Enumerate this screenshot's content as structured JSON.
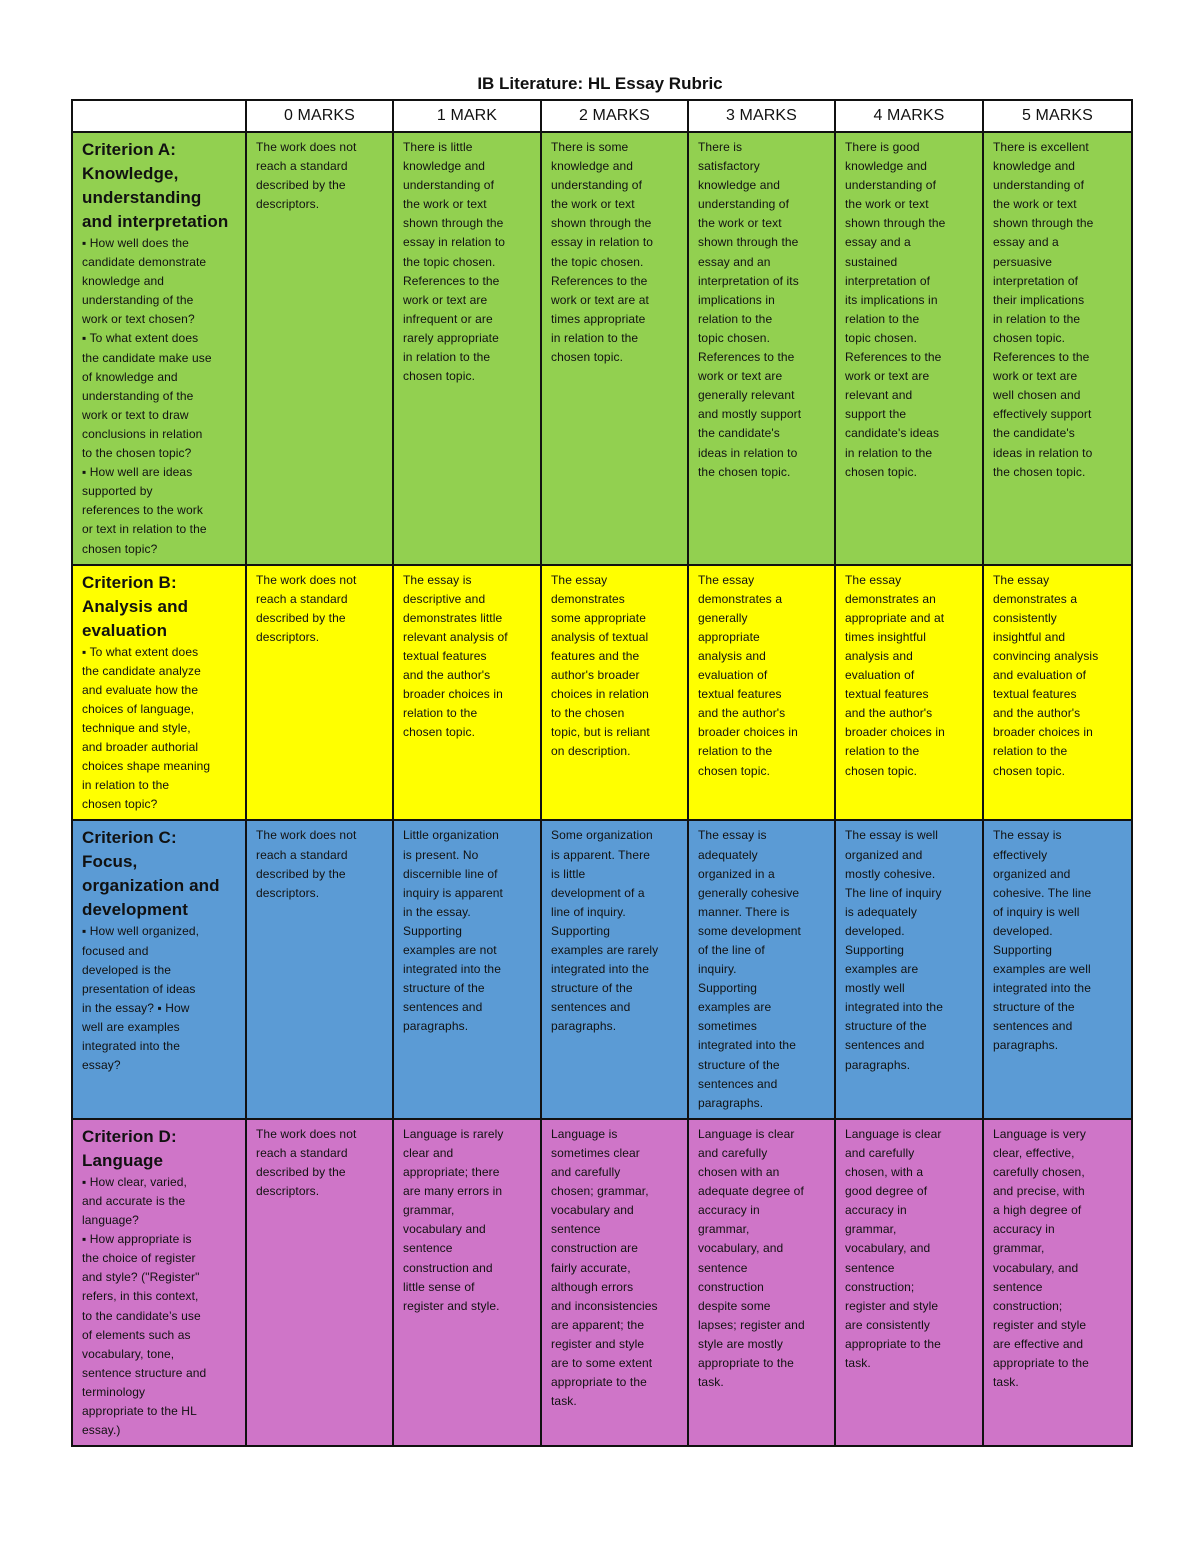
{
  "title": "IB Literature: HL Essay Rubric",
  "colors": {
    "criterion_a": "#92d050",
    "criterion_b": "#ffff00",
    "criterion_c": "#5b9bd5",
    "criterion_d": "#cf75c8"
  },
  "headers": [
    "",
    "0 MARKS",
    "1 MARK",
    "2 MARKS",
    "3 MARKS",
    "4 MARKS",
    "5 MARKS"
  ],
  "rows": [
    {
      "title": "Criterion A:\nKnowledge,\nunderstanding\nand interpretation",
      "description": "▪  How well does the\ncandidate demonstrate\nknowledge and\nunderstanding of the\nwork or text chosen?\n▪  To what extent does\nthe candidate make use\nof knowledge and\nunderstanding of the\nwork or text to draw\nconclusions in relation\nto the chosen topic?\n▪  How well are ideas\nsupported by\nreferences to the work\nor text in relation to the\nchosen topic?",
      "cells": [
        "The work does not\nreach a standard\ndescribed by the\ndescriptors.",
        "There is little\nknowledge and\nunderstanding of\nthe work or text\nshown through the\nessay in relation to\nthe topic chosen.\nReferences to the\nwork or text are\ninfrequent or are\nrarely appropriate\nin relation to the\nchosen topic.",
        "There is some\nknowledge and\nunderstanding of\nthe work or text\nshown through the\nessay in relation to\nthe topic chosen.\nReferences to the\nwork or text are at\ntimes appropriate\nin relation to the\nchosen topic.",
        "There is\nsatisfactory\nknowledge and\nunderstanding of\nthe work or text\nshown through the\nessay and an\ninterpretation of its\nimplications in\nrelation to the\ntopic chosen.\nReferences to the\nwork or text are\ngenerally relevant\nand mostly support\nthe candidate's\nideas in relation to\nthe chosen topic.",
        "There is good\nknowledge and\nunderstanding of\nthe work or text\nshown through the\nessay and a\nsustained\ninterpretation of\nits implications in\nrelation to the\ntopic chosen.\nReferences to the\nwork or text are\nrelevant and\nsupport the\ncandidate's ideas\nin relation to the\nchosen topic.",
        "There is excellent\nknowledge and\nunderstanding of\nthe work or text\nshown through the\nessay and a\npersuasive\ninterpretation of\ntheir implications\nin relation to the\nchosen topic.\nReferences to the\nwork or text are\nwell chosen and\neffectively support\nthe candidate's\nideas in relation to\nthe chosen topic."
      ]
    },
    {
      "title": "Criterion B:\nAnalysis and\nevaluation",
      "description": "▪ To what extent does\nthe candidate analyze\nand evaluate how the\nchoices of language,\ntechnique and style,\nand broader authorial\nchoices shape meaning\nin relation to the\nchosen topic?",
      "cells": [
        "The work does not\nreach a standard\ndescribed by the\ndescriptors.",
        "The essay is\ndescriptive and\ndemonstrates little\nrelevant analysis of\ntextual features\nand the author's\nbroader choices in\nrelation to the\nchosen topic.",
        "The essay\ndemonstrates\nsome appropriate\nanalysis of textual\nfeatures and the\nauthor's broader\nchoices in relation\nto the chosen\ntopic, but is reliant\non description.",
        "The essay\ndemonstrates a\ngenerally\nappropriate\nanalysis and\nevaluation of\ntextual features\nand the author's\nbroader choices in\nrelation to the\nchosen topic.",
        "The essay\ndemonstrates an\nappropriate and at\ntimes insightful\nanalysis and\nevaluation of\ntextual features\nand the author's\nbroader choices in\nrelation to the\nchosen topic.",
        "The essay\ndemonstrates a\nconsistently\ninsightful and\nconvincing analysis\nand evaluation of\ntextual features\nand the author's\nbroader choices in\nrelation to the\nchosen topic."
      ]
    },
    {
      "title": "Criterion C: Focus,\norganization and\ndevelopment",
      "description": "▪ How well organized,\nfocused and\ndeveloped is the\npresentation of ideas\nin the essay? ▪ How\nwell are examples\nintegrated into the\nessay?",
      "cells": [
        "The work does not\nreach a standard\ndescribed by the\ndescriptors.",
        "Little organization\nis present. No\ndiscernible line of\ninquiry is apparent\nin the essay.\nSupporting\nexamples are not\nintegrated into the\nstructure of the\nsentences and\nparagraphs.",
        "Some organization\nis apparent. There\nis little\ndevelopment of a\nline of inquiry.\nSupporting\nexamples are rarely\nintegrated into the\nstructure of the\nsentences and\nparagraphs.",
        "The essay is\nadequately\norganized in a\ngenerally cohesive\nmanner. There is\nsome development\nof the line of\ninquiry.\nSupporting\nexamples are\nsometimes\nintegrated into the\nstructure of the\nsentences and\nparagraphs.",
        "The essay is well\norganized and\nmostly cohesive.\nThe line of inquiry\nis adequately\ndeveloped.\nSupporting\nexamples are\nmostly well\nintegrated into the\nstructure of the\nsentences and\nparagraphs.",
        "The essay is\neffectively\norganized and\ncohesive. The line\nof inquiry is well\ndeveloped.\nSupporting\nexamples are well\nintegrated into the\nstructure of the\nsentences and\nparagraphs."
      ]
    },
    {
      "title": "Criterion D:\nLanguage",
      "description": "▪  How clear, varied,\nand accurate is the\nlanguage?\n▪  How appropriate is\nthe choice of register\nand style? (\"Register\"\nrefers, in this context,\nto the candidate’s use\nof elements such as\nvocabulary, tone,\nsentence structure and\nterminology\nappropriate to the HL\nessay.)",
      "cells": [
        "The work does not\nreach a standard\ndescribed by the\ndescriptors.",
        "Language is rarely\nclear and\nappropriate; there\nare many errors in\ngrammar,\nvocabulary and\nsentence\nconstruction and\nlittle sense of\nregister and style.",
        "Language is\nsometimes clear\nand carefully\nchosen; grammar,\nvocabulary and\nsentence\nconstruction are\nfairly accurate,\nalthough errors\nand inconsistencies\nare apparent; the\nregister and style\nare to some extent\nappropriate to the\ntask.",
        "Language is clear\nand carefully\nchosen with an\nadequate degree of\naccuracy in\ngrammar,\nvocabulary, and\nsentence\nconstruction\ndespite some\nlapses; register and\nstyle are mostly\nappropriate to the\ntask.",
        "Language is clear\nand carefully\nchosen, with a\ngood degree of\naccuracy in\ngrammar,\nvocabulary, and\nsentence\nconstruction;\nregister and style\nare consistently\nappropriate to the\ntask.",
        "Language is very\nclear, effective,\ncarefully chosen,\nand precise, with\na high degree of\naccuracy in\ngrammar,\nvocabulary, and\nsentence\nconstruction;\nregister and style\nare effective and\nappropriate to the\ntask."
      ]
    }
  ]
}
